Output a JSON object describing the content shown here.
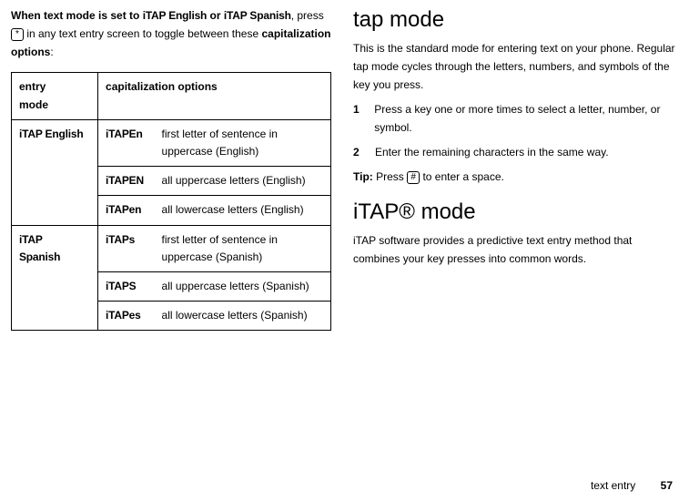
{
  "left": {
    "intro_bold1": "When text mode is set to ",
    "intro_mode1": "iTAP English",
    "intro_or": " or ",
    "intro_mode2": "iTAP Spanish",
    "intro_after": ", press ",
    "intro_key": "*",
    "intro_tail": " in any text entry screen to toggle between these ",
    "intro_bold2": "capitalization options",
    "intro_colon": ":",
    "table": {
      "h1a": "entry",
      "h1b": "mode",
      "h2": "capitalization options",
      "r1_mode": "iTAP English",
      "r1_c1": "iTAPEn",
      "r1_d1a": "first letter of sentence in",
      "r1_d1b": "uppercase (English)",
      "r1_c2": "iTAPEN",
      "r1_d2": "all uppercase letters (English)",
      "r1_c3": "iTAPen",
      "r1_d3": "all lowercase letters (English)",
      "r2_mode_a": "iTAP",
      "r2_mode_b": "Spanish",
      "r2_c1": "iTAPs",
      "r2_d1a": "first letter of sentence in",
      "r2_d1b": "uppercase (Spanish)",
      "r2_c2": "iTAPS",
      "r2_d2": "all uppercase letters (Spanish)",
      "r2_c3": "iTAPes",
      "r2_d3": "all lowercase letters (Spanish)"
    }
  },
  "right": {
    "h_tap": "tap mode",
    "tap_p": "This is the standard mode for entering text on your phone. Regular tap mode cycles through the letters, numbers, and symbols of the key you press.",
    "step1": "Press a key one or more times to select a letter, number, or symbol.",
    "step2": "Enter the remaining characters in the same way.",
    "tip_b": "Tip:",
    "tip_pre": " Press ",
    "tip_key": "#",
    "tip_post": " to enter a space.",
    "h_itap": "iTAP® mode",
    "itap_p": " iTAP software provides a predictive text entry method that combines your key presses into common words."
  },
  "footer": {
    "label": "text entry",
    "page": "57"
  }
}
